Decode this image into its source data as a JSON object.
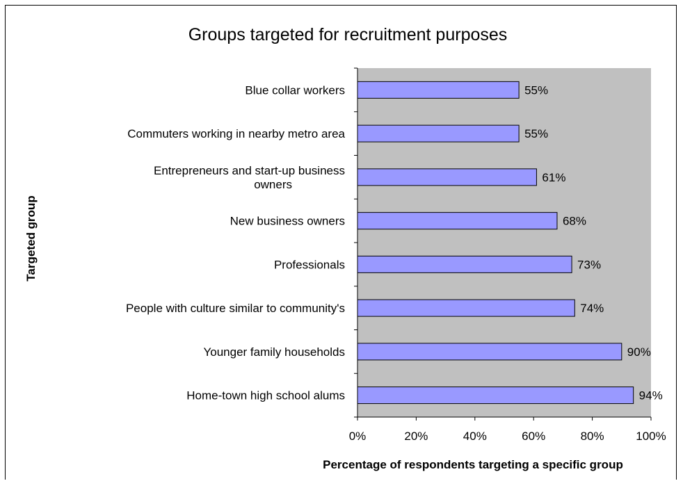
{
  "chart_data": {
    "type": "bar",
    "orientation": "horizontal",
    "title": "Groups targeted for recruitment purposes",
    "xlabel": "Percentage of respondents targeting a specific group",
    "ylabel": "Targeted group",
    "categories": [
      "Blue collar workers",
      "Commuters working in nearby metro area",
      "Entrepreneurs and start-up business owners",
      "New business owners",
      "Professionals",
      "People with culture similar to community's",
      "Younger family households",
      "Home-town high school alums"
    ],
    "category_lines": [
      [
        "Blue collar workers"
      ],
      [
        "Commuters working in nearby metro area"
      ],
      [
        "Entrepreneurs and start-up business",
        "owners"
      ],
      [
        "New business owners"
      ],
      [
        "Professionals"
      ],
      [
        "People with culture similar to community's"
      ],
      [
        "Younger family households"
      ],
      [
        "Home-town high school alums"
      ]
    ],
    "values": [
      55,
      55,
      61,
      68,
      73,
      74,
      90,
      94
    ],
    "data_labels": [
      "55%",
      "55%",
      "61%",
      "68%",
      "73%",
      "74%",
      "90%",
      "94%"
    ],
    "xlim": [
      0,
      100
    ],
    "xticks": [
      0,
      20,
      40,
      60,
      80,
      100
    ],
    "xtick_labels": [
      "0%",
      "20%",
      "40%",
      "60%",
      "80%",
      "100%"
    ],
    "grid": false,
    "legend": "none",
    "colors": {
      "bar_fill": "#9999ff",
      "bar_stroke": "#000000",
      "plot_background": "#c0c0c0",
      "page_background": "#ffffff"
    }
  }
}
